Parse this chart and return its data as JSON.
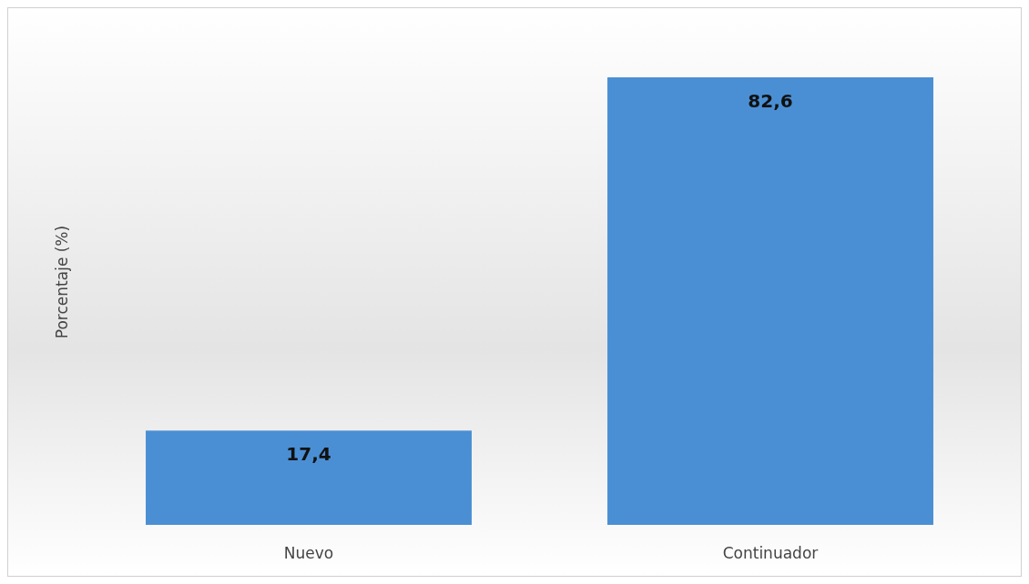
{
  "chart_data": {
    "type": "bar",
    "ylabel": "Porcentaje (%)",
    "categories": [
      "Nuevo",
      "Continuador"
    ],
    "values": [
      17.4,
      82.6
    ],
    "value_labels": [
      "17,4",
      "82,6"
    ],
    "color": "#4a8fd4"
  }
}
